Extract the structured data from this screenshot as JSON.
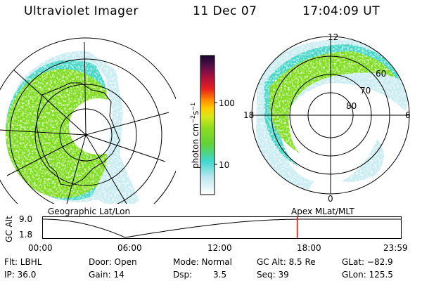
{
  "header": {
    "instrument": "Ultraviolet Imager",
    "date": "11 Dec 07",
    "time": "17:04:09 UT"
  },
  "colorbar": {
    "label_main": "photon cm",
    "label_sup1": "−2",
    "label_s": "s",
    "label_sup2": "−1",
    "ticks": [
      "100",
      "10"
    ]
  },
  "left_panel": {
    "caption": "Geographic Lat/Lon"
  },
  "right_panel": {
    "caption": "Apex MLat/MLT",
    "mlt_labels": {
      "top": "12",
      "left": "18",
      "right": "6",
      "bottom": "0"
    },
    "lat_labels": [
      "60",
      "70",
      "80"
    ]
  },
  "timeline": {
    "ylabel": "GC Alt",
    "y_ticks": [
      "9.0",
      "1.8"
    ],
    "x_ticks": [
      "00:00",
      "06:00",
      "12:00",
      "18:00",
      "23:59"
    ],
    "marker_fraction": 0.71,
    "marker_color": "#ff0000"
  },
  "info": {
    "col1": [
      "Flt: LBHL",
      "IP: 36.0"
    ],
    "col2": [
      "Door: Open",
      "Gain: 14"
    ],
    "col3a": [
      "Mode: Normal",
      "Dsp:"
    ],
    "col3b": [
      "",
      "3.5"
    ],
    "col4": [
      "GC Alt: 8.5 Re",
      "Seq: 39"
    ],
    "col5": [
      "GLat: −82.9",
      "GLon: 125.5"
    ]
  },
  "colors": {
    "aurora_green": "#7fdc1e",
    "aurora_cyan": "#3fd6d0",
    "aurora_pale": "#bfe8ef"
  }
}
